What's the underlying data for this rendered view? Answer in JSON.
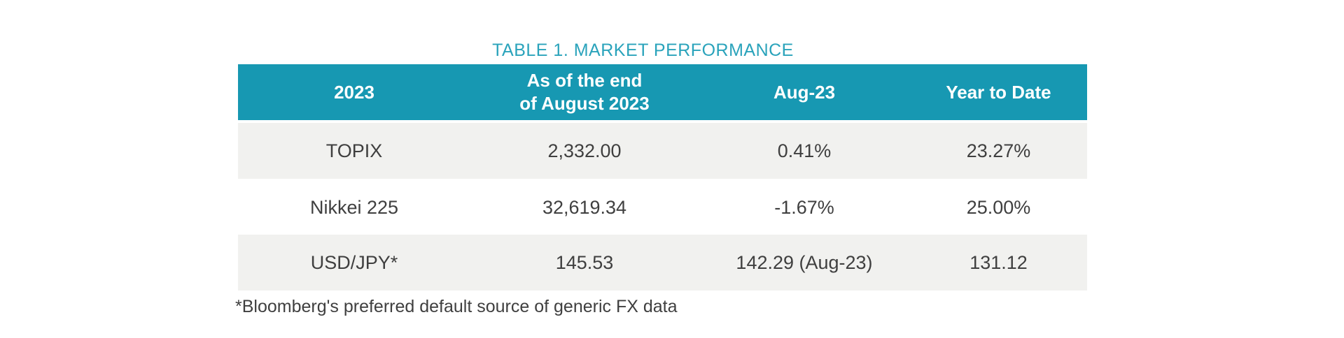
{
  "title": "TABLE 1. MARKET PERFORMANCE",
  "colors": {
    "accent_teal": "#1798B2",
    "title_teal": "#2AA3BB",
    "row_alt_gray": "#F1F1EF",
    "header_text": "#FFFFFF",
    "body_text": "#3F3F3F"
  },
  "table": {
    "columns": [
      "2023",
      "As of the end\nof August 2023",
      "Aug-23",
      "Year to Date"
    ],
    "rows": [
      {
        "cells": [
          "TOPIX",
          "2,332.00",
          "0.41%",
          "23.27%"
        ]
      },
      {
        "cells": [
          "Nikkei 225",
          "32,619.34",
          "-1.67%",
          "25.00%"
        ]
      },
      {
        "cells": [
          "USD/JPY*",
          "145.53",
          "142.29 (Aug-23)",
          "131.12"
        ]
      }
    ]
  },
  "footnote": "*Bloomberg's preferred default source of generic FX data"
}
